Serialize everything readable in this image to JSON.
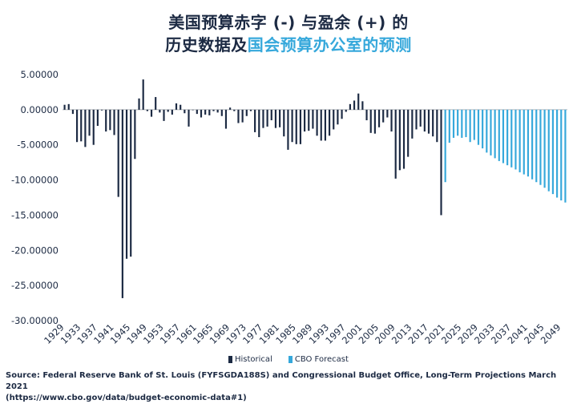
{
  "title": {
    "line1": "美国预算赤字 (-) 与盈余 (+) 的",
    "line2_part1": "历史数据及",
    "line2_part2": "国会预算办公室的预测"
  },
  "colors": {
    "historical": "#1c2a43",
    "forecast": "#36a8db",
    "axis": "#9aa0a6"
  },
  "legend": {
    "historical": "Historical",
    "forecast": "CBO Forecast"
  },
  "source": {
    "line1": "Source: Federal Reserve Bank of St. Louis (FYFSGDA188S) and Congressional Budget Office, Long-Term Projections March 2021",
    "line2": "(https://www.cbo.gov/data/budget-economic-data#1)"
  },
  "chart_data": {
    "type": "bar",
    "ylim": [
      -30,
      5
    ],
    "yticks": [
      5,
      0,
      -5,
      -10,
      -15,
      -20,
      -25,
      -30
    ],
    "ytick_labels": [
      "5.00000",
      "0.00000",
      "-5.00000",
      "-10.00000",
      "-15.00000",
      "-20.00000",
      "-25.00000",
      "-30.00000"
    ],
    "xtick_labels": [
      "1929",
      "1933",
      "1937",
      "1941",
      "1945",
      "1949",
      "1953",
      "1957",
      "1961",
      "1965",
      "1969",
      "1973",
      "1977",
      "1981",
      "1985",
      "1989",
      "1993",
      "1997",
      "2001",
      "2005",
      "2009",
      "2013",
      "2017",
      "2021",
      "2025",
      "2029",
      "2033",
      "2037",
      "2041",
      "2045",
      "2049"
    ],
    "x_start": 1929,
    "x_end": 2050,
    "series": [
      {
        "name": "Historical",
        "years": [
          1929,
          1930,
          1931,
          1932,
          1933,
          1934,
          1935,
          1936,
          1937,
          1938,
          1939,
          1940,
          1941,
          1942,
          1943,
          1944,
          1945,
          1946,
          1947,
          1948,
          1949,
          1950,
          1951,
          1952,
          1953,
          1954,
          1955,
          1956,
          1957,
          1958,
          1959,
          1960,
          1961,
          1962,
          1963,
          1964,
          1965,
          1966,
          1967,
          1968,
          1969,
          1970,
          1971,
          1972,
          1973,
          1974,
          1975,
          1976,
          1977,
          1978,
          1979,
          1980,
          1981,
          1982,
          1983,
          1984,
          1985,
          1986,
          1987,
          1988,
          1989,
          1990,
          1991,
          1992,
          1993,
          1994,
          1995,
          1996,
          1997,
          1998,
          1999,
          2000,
          2001,
          2002,
          2003,
          2004,
          2005,
          2006,
          2007,
          2008,
          2009,
          2010,
          2011,
          2012,
          2013,
          2014,
          2015,
          2016,
          2017,
          2018,
          2019,
          2020
        ],
        "values": [
          0.7,
          0.8,
          -0.6,
          -4.6,
          -4.5,
          -5.3,
          -3.7,
          -5.0,
          -2.3,
          -0.1,
          -3.1,
          -2.9,
          -3.6,
          -12.4,
          -26.8,
          -21.2,
          -20.9,
          -7.0,
          1.6,
          4.3,
          -0.2,
          -1.0,
          1.8,
          -0.4,
          -1.6,
          -0.3,
          -0.7,
          0.9,
          0.7,
          -0.5,
          -2.4,
          0.0,
          -0.6,
          -1.1,
          -0.7,
          -0.8,
          -0.2,
          -0.4,
          -0.9,
          -2.7,
          0.3,
          -0.2,
          -1.9,
          -1.8,
          -0.9,
          -0.2,
          -3.2,
          -3.9,
          -2.6,
          -2.4,
          -1.5,
          -2.6,
          -2.5,
          -3.8,
          -5.7,
          -4.6,
          -4.9,
          -4.9,
          -3.1,
          -3.0,
          -2.7,
          -3.7,
          -4.4,
          -4.4,
          -3.7,
          -2.8,
          -2.1,
          -1.3,
          -0.3,
          0.8,
          1.3,
          2.3,
          1.2,
          -1.5,
          -3.3,
          -3.4,
          -2.5,
          -1.8,
          -1.1,
          -3.1,
          -9.8,
          -8.6,
          -8.4,
          -6.7,
          -4.1,
          -2.8,
          -2.4,
          -3.1,
          -3.4,
          -3.8,
          -4.6,
          -15.0
        ]
      },
      {
        "name": "CBO Forecast",
        "years": [
          2021,
          2022,
          2023,
          2024,
          2025,
          2026,
          2027,
          2028,
          2029,
          2030,
          2031,
          2032,
          2033,
          2034,
          2035,
          2036,
          2037,
          2038,
          2039,
          2040,
          2041,
          2042,
          2043,
          2044,
          2045,
          2046,
          2047,
          2048,
          2049,
          2050,
          2051
        ],
        "values": [
          -10.3,
          -4.7,
          -4.0,
          -3.7,
          -4.0,
          -3.9,
          -4.6,
          -4.3,
          -5.0,
          -5.5,
          -6.1,
          -6.5,
          -6.9,
          -7.3,
          -7.6,
          -7.9,
          -8.2,
          -8.5,
          -8.9,
          -9.2,
          -9.5,
          -9.9,
          -10.3,
          -10.7,
          -11.1,
          -11.6,
          -12.0,
          -12.5,
          -12.9,
          -13.2,
          -13.2
        ]
      }
    ]
  }
}
